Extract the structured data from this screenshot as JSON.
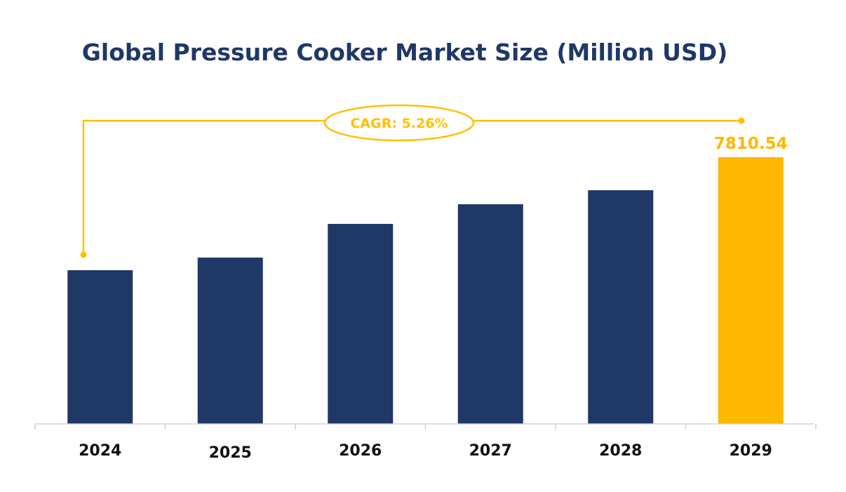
{
  "chart_data": {
    "type": "bar",
    "title": "Global Pressure Cooker Market Size (Million USD)",
    "xlabel": "",
    "ylabel": "",
    "ylim": [
      0,
      9000
    ],
    "grid": false,
    "categories": [
      "2024",
      "2025",
      "2026",
      "2027",
      "2028",
      "2029"
    ],
    "values": [
      4502,
      4871,
      5858,
      6433,
      6844,
      7810.54
    ],
    "highlight_index": 5,
    "data_labels": {
      "5": "7810.54"
    },
    "annotation": "CAGR: 5.26%",
    "colors": {
      "bar": "#1f3868",
      "highlight": "#ffb800",
      "title": "#1f3868",
      "axis": "#d0d0d0",
      "tick_label": "#111111"
    }
  }
}
